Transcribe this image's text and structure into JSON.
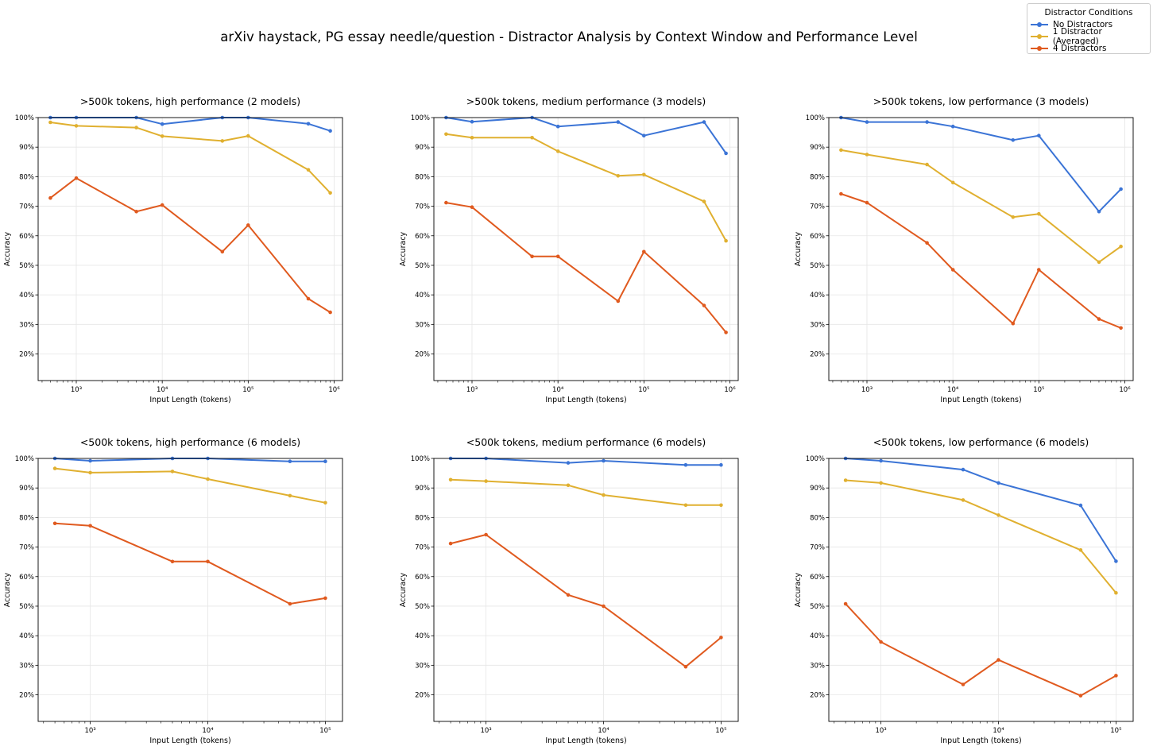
{
  "figure": {
    "title": "arXiv haystack, PG essay needle/question - Distractor Analysis by Context Window and Performance Level"
  },
  "legend": {
    "title": "Distractor Conditions",
    "items": [
      {
        "label": "No Distractors",
        "color": "#3b74d6"
      },
      {
        "label": "1 Distractor (Averaged)",
        "color": "#e0b030"
      },
      {
        "label": "4 Distractors",
        "color": "#e05a1f"
      }
    ]
  },
  "chart_data": [
    {
      "type": "line",
      "title": ">500k tokens, high performance (2 models)",
      "xlabel": "Input Length (tokens)",
      "ylabel": "Accuracy",
      "xscale": "log",
      "xlim": [
        360,
        1250000
      ],
      "ylim": [
        11,
        100
      ],
      "xticks": [
        {
          "value": 1000,
          "label": "10³"
        },
        {
          "value": 10000,
          "label": "10⁴"
        },
        {
          "value": 100000,
          "label": "10⁵"
        },
        {
          "value": 1000000,
          "label": "10⁶"
        }
      ],
      "yticks": [
        20,
        30,
        40,
        50,
        60,
        70,
        80,
        90,
        100
      ],
      "x": [
        500,
        1000,
        5000,
        10000,
        50000,
        100000,
        500000,
        900000
      ],
      "series": [
        {
          "name": "No Distractors",
          "values": [
            100,
            100,
            100,
            97.8,
            100,
            100,
            97.9,
            95.5
          ]
        },
        {
          "name": "1 Distractor (Averaged)",
          "values": [
            98.4,
            97.2,
            96.6,
            93.7,
            92.1,
            93.8,
            82.3,
            74.5
          ]
        },
        {
          "name": "4 Distractors",
          "values": [
            72.8,
            79.5,
            68.2,
            70.4,
            54.6,
            63.6,
            38.7,
            34.1
          ]
        }
      ]
    },
    {
      "type": "line",
      "title": ">500k tokens, medium performance (3 models)",
      "xlabel": "Input Length (tokens)",
      "ylabel": "Accuracy",
      "xscale": "log",
      "xlim": [
        360,
        1250000
      ],
      "ylim": [
        11,
        100
      ],
      "xticks": [
        {
          "value": 1000,
          "label": "10³"
        },
        {
          "value": 10000,
          "label": "10⁴"
        },
        {
          "value": 100000,
          "label": "10⁵"
        },
        {
          "value": 1000000,
          "label": "10⁶"
        }
      ],
      "yticks": [
        20,
        30,
        40,
        50,
        60,
        70,
        80,
        90,
        100
      ],
      "x": [
        500,
        1000,
        5000,
        10000,
        50000,
        100000,
        500000,
        900000
      ],
      "series": [
        {
          "name": "No Distractors",
          "values": [
            100,
            98.6,
            100,
            97.0,
            98.5,
            93.9,
            98.5,
            87.9
          ]
        },
        {
          "name": "1 Distractor (Averaged)",
          "values": [
            94.4,
            93.2,
            93.2,
            88.6,
            80.3,
            80.7,
            71.6,
            58.3
          ]
        },
        {
          "name": "4 Distractors",
          "values": [
            71.2,
            69.7,
            53.0,
            53.0,
            37.9,
            54.6,
            36.4,
            27.3
          ]
        }
      ]
    },
    {
      "type": "line",
      "title": ">500k tokens, low performance (3 models)",
      "xlabel": "Input Length (tokens)",
      "ylabel": "Accuracy",
      "xscale": "log",
      "xlim": [
        360,
        1250000
      ],
      "ylim": [
        11,
        100
      ],
      "xticks": [
        {
          "value": 1000,
          "label": "10³"
        },
        {
          "value": 10000,
          "label": "10⁴"
        },
        {
          "value": 100000,
          "label": "10⁵"
        },
        {
          "value": 1000000,
          "label": "10⁶"
        }
      ],
      "yticks": [
        20,
        30,
        40,
        50,
        60,
        70,
        80,
        90,
        100
      ],
      "x": [
        500,
        1000,
        5000,
        10000,
        50000,
        100000,
        500000,
        900000
      ],
      "series": [
        {
          "name": "No Distractors",
          "values": [
            100,
            98.5,
            98.5,
            97.0,
            92.4,
            93.9,
            68.2,
            75.8
          ]
        },
        {
          "name": "1 Distractor (Averaged)",
          "values": [
            89.0,
            87.5,
            84.1,
            78.0,
            66.3,
            67.4,
            51.1,
            56.4
          ]
        },
        {
          "name": "4 Distractors",
          "values": [
            74.2,
            71.2,
            57.6,
            48.5,
            30.3,
            48.5,
            31.8,
            28.8
          ]
        }
      ]
    },
    {
      "type": "line",
      "title": "<500k tokens, high performance (6 models)",
      "xlabel": "Input Length (tokens)",
      "ylabel": "Accuracy",
      "xscale": "log",
      "xlim": [
        360,
        140000
      ],
      "ylim": [
        11,
        100
      ],
      "xticks": [
        {
          "value": 1000,
          "label": "10³"
        },
        {
          "value": 10000,
          "label": "10⁴"
        },
        {
          "value": 100000,
          "label": "10⁵"
        }
      ],
      "yticks": [
        20,
        30,
        40,
        50,
        60,
        70,
        80,
        90,
        100
      ],
      "x": [
        500,
        1000,
        5000,
        10000,
        50000,
        100000
      ],
      "series": [
        {
          "name": "No Distractors",
          "values": [
            100,
            99.2,
            100,
            100,
            99.0,
            99.0
          ]
        },
        {
          "name": "1 Distractor (Averaged)",
          "values": [
            96.6,
            95.2,
            95.6,
            93.0,
            87.4,
            85.0
          ]
        },
        {
          "name": "4 Distractors",
          "values": [
            78.0,
            77.2,
            65.1,
            65.1,
            50.8,
            52.7
          ]
        }
      ]
    },
    {
      "type": "line",
      "title": "<500k tokens, medium performance (6 models)",
      "xlabel": "Input Length (tokens)",
      "ylabel": "Accuracy",
      "xscale": "log",
      "xlim": [
        360,
        140000
      ],
      "ylim": [
        11,
        100
      ],
      "xticks": [
        {
          "value": 1000,
          "label": "10³"
        },
        {
          "value": 10000,
          "label": "10⁴"
        },
        {
          "value": 100000,
          "label": "10⁵"
        }
      ],
      "yticks": [
        20,
        30,
        40,
        50,
        60,
        70,
        80,
        90,
        100
      ],
      "x": [
        500,
        1000,
        5000,
        10000,
        50000,
        100000
      ],
      "series": [
        {
          "name": "No Distractors",
          "values": [
            100,
            100,
            98.5,
            99.2,
            97.8,
            97.8
          ]
        },
        {
          "name": "1 Distractor (Averaged)",
          "values": [
            92.8,
            92.3,
            90.9,
            87.6,
            84.2,
            84.2
          ]
        },
        {
          "name": "4 Distractors",
          "values": [
            71.2,
            74.2,
            53.8,
            50.0,
            29.5,
            39.4
          ]
        }
      ]
    },
    {
      "type": "line",
      "title": "<500k tokens, low performance (6 models)",
      "xlabel": "Input Length (tokens)",
      "ylabel": "Accuracy",
      "xscale": "log",
      "xlim": [
        360,
        140000
      ],
      "ylim": [
        11,
        100
      ],
      "xticks": [
        {
          "value": 1000,
          "label": "10³"
        },
        {
          "value": 10000,
          "label": "10⁴"
        },
        {
          "value": 100000,
          "label": "10⁵"
        }
      ],
      "yticks": [
        20,
        30,
        40,
        50,
        60,
        70,
        80,
        90,
        100
      ],
      "x": [
        500,
        1000,
        5000,
        10000,
        50000,
        100000
      ],
      "series": [
        {
          "name": "No Distractors",
          "values": [
            100,
            99.2,
            96.2,
            91.7,
            84.1,
            65.2
          ]
        },
        {
          "name": "1 Distractor (Averaged)",
          "values": [
            92.6,
            91.7,
            85.9,
            80.8,
            69.0,
            54.5
          ]
        },
        {
          "name": "4 Distractors",
          "values": [
            50.8,
            37.9,
            23.5,
            31.8,
            19.7,
            26.5
          ]
        }
      ]
    }
  ]
}
